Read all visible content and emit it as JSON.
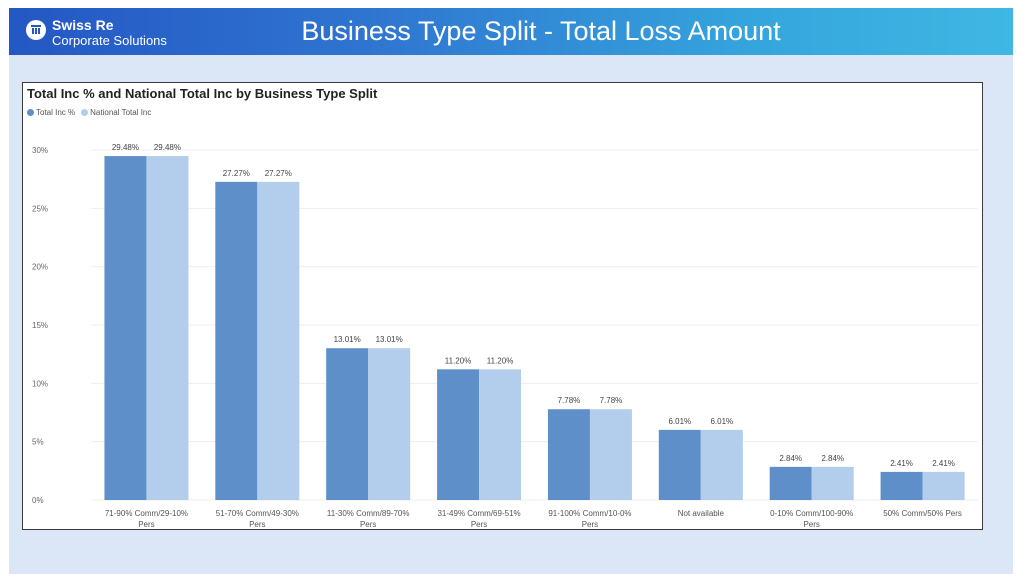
{
  "header": {
    "brand_name": "Swiss Re",
    "brand_sub": "Corporate Solutions",
    "title": "Business Type Split - Total Loss Amount"
  },
  "colors": {
    "series1": "#5f8fc9",
    "series2": "#b3cdec",
    "banner_start": "#2457c4",
    "banner_end": "#3fb7e3",
    "background": "#dbe6f6"
  },
  "chart_data": {
    "type": "bar",
    "title": "Total Inc % and National Total Inc by Business Type Split",
    "legend_position": "top-left",
    "grid": true,
    "ylim": [
      0,
      30
    ],
    "yticks": [
      {
        "value": 0,
        "label": "0%"
      },
      {
        "value": 5,
        "label": "5%"
      },
      {
        "value": 10,
        "label": "10%"
      },
      {
        "value": 15,
        "label": "15%"
      },
      {
        "value": 20,
        "label": "20%"
      },
      {
        "value": 25,
        "label": "25%"
      },
      {
        "value": 30,
        "label": "30%"
      }
    ],
    "categories": [
      "71-90% Comm/29-10% Pers",
      "51-70% Comm/49-30% Pers",
      "11-30% Comm/89-70% Pers",
      "31-49% Comm/69-51% Pers",
      "91-100% Comm/10-0% Pers",
      "Not available",
      "0-10% Comm/100-90% Pers",
      "50% Comm/50% Pers"
    ],
    "series": [
      {
        "name": "Total Inc %",
        "values": [
          29.48,
          27.27,
          13.01,
          11.2,
          7.78,
          6.01,
          2.84,
          2.41
        ],
        "labels": [
          "29.48%",
          "27.27%",
          "13.01%",
          "11.20%",
          "7.78%",
          "6.01%",
          "2.84%",
          "2.41%"
        ]
      },
      {
        "name": "National Total Inc",
        "values": [
          29.48,
          27.27,
          13.01,
          11.2,
          7.78,
          6.01,
          2.84,
          2.41
        ],
        "labels": [
          "29.48%",
          "27.27%",
          "13.01%",
          "11.20%",
          "7.78%",
          "6.01%",
          "2.84%",
          "2.41%"
        ]
      }
    ]
  }
}
